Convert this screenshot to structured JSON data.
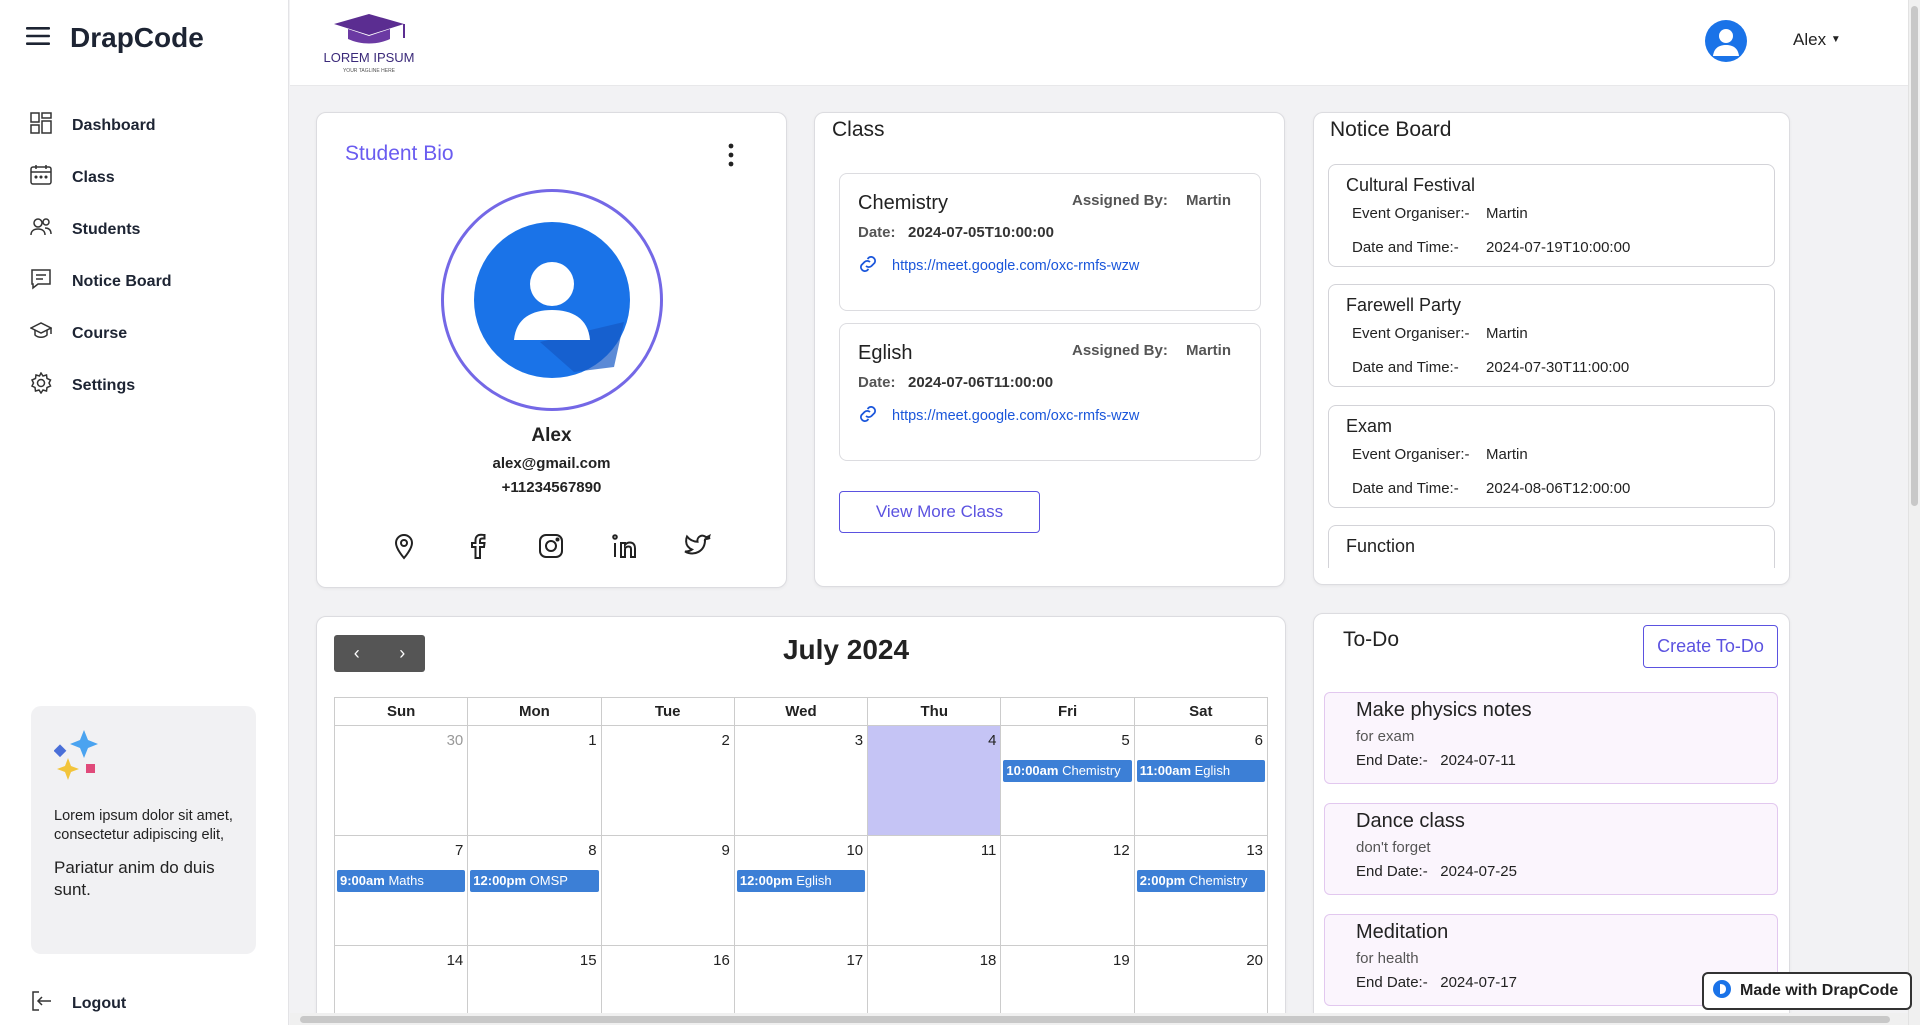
{
  "sidebar": {
    "brand": "DrapCode",
    "items": [
      {
        "label": "Dashboard",
        "icon": "dashboard-icon"
      },
      {
        "label": "Class",
        "icon": "calendar-icon"
      },
      {
        "label": "Students",
        "icon": "students-icon"
      },
      {
        "label": "Notice Board",
        "icon": "notice-board-icon"
      },
      {
        "label": "Course",
        "icon": "graduation-cap-icon"
      },
      {
        "label": "Settings",
        "icon": "gear-icon"
      }
    ],
    "promo": {
      "text1": "Lorem ipsum dolor sit amet, consectetur adipiscing elit,",
      "text2": "Pariatur anim do duis sunt."
    },
    "logout": "Logout"
  },
  "header": {
    "logo_title": "LOREM IPSUM",
    "logo_tagline": "YOUR TAGLINE HERE",
    "user_name": "Alex"
  },
  "bio": {
    "title": "Student Bio",
    "name": "Alex",
    "email": "alex@gmail.com",
    "phone": "+11234567890"
  },
  "class_card": {
    "title": "Class",
    "assigned_label": "Assigned By:",
    "date_label": "Date:",
    "items": [
      {
        "subject": "Chemistry",
        "assigned_by": "Martin",
        "date": "2024-07-05T10:00:00",
        "link": "https://meet.google.com/oxc-rmfs-wzw"
      },
      {
        "subject": "Eglish",
        "assigned_by": "Martin",
        "date": "2024-07-06T11:00:00",
        "link": "https://meet.google.com/oxc-rmfs-wzw"
      }
    ],
    "view_more": "View More Class"
  },
  "notice_board": {
    "title": "Notice Board",
    "organiser_label": "Event Organiser:-",
    "datetime_label": "Date and Time:-",
    "items": [
      {
        "title": "Cultural Festival",
        "organiser": "Martin",
        "datetime": "2024-07-19T10:00:00"
      },
      {
        "title": "Farewell Party",
        "organiser": "Martin",
        "datetime": "2024-07-30T11:00:00"
      },
      {
        "title": "Exam",
        "organiser": "Martin",
        "datetime": "2024-08-06T12:00:00"
      },
      {
        "title": "Function"
      }
    ]
  },
  "calendar": {
    "title": "July 2024",
    "prev": "‹",
    "next": "›",
    "weekdays": [
      "Sun",
      "Mon",
      "Tue",
      "Wed",
      "Thu",
      "Fri",
      "Sat"
    ],
    "weeks": [
      [
        {
          "day": "30",
          "other": true
        },
        {
          "day": "1"
        },
        {
          "day": "2"
        },
        {
          "day": "3"
        },
        {
          "day": "4",
          "today": true
        },
        {
          "day": "5",
          "event_time": "10:00am",
          "event": "Chemistry"
        },
        {
          "day": "6",
          "event_time": "11:00am",
          "event": "Eglish"
        }
      ],
      [
        {
          "day": "7",
          "event_time": "9:00am",
          "event": "Maths"
        },
        {
          "day": "8",
          "event_time": "12:00pm",
          "event": "OMSP"
        },
        {
          "day": "9"
        },
        {
          "day": "10",
          "event_time": "12:00pm",
          "event": "Eglish"
        },
        {
          "day": "11"
        },
        {
          "day": "12"
        },
        {
          "day": "13",
          "event_time": "2:00pm",
          "event": "Chemistry"
        }
      ],
      [
        {
          "day": "14"
        },
        {
          "day": "15"
        },
        {
          "day": "16"
        },
        {
          "day": "17"
        },
        {
          "day": "18"
        },
        {
          "day": "19"
        },
        {
          "day": "20"
        }
      ]
    ]
  },
  "todo": {
    "title": "To-Do",
    "create": "Create To-Do",
    "end_label": "End Date:-",
    "items": [
      {
        "title": "Make physics notes",
        "desc": "for exam",
        "end": "2024-07-11"
      },
      {
        "title": "Dance class",
        "desc": "don't forget",
        "end": "2024-07-25"
      },
      {
        "title": "Meditation",
        "desc": "for health",
        "end": "2024-07-17"
      }
    ]
  },
  "badge": "Made with DrapCode",
  "colors": {
    "accent": "#6a5cf0",
    "event": "#3c7fd6",
    "today": "#c5c4f5",
    "avatar": "#1a73e8"
  }
}
